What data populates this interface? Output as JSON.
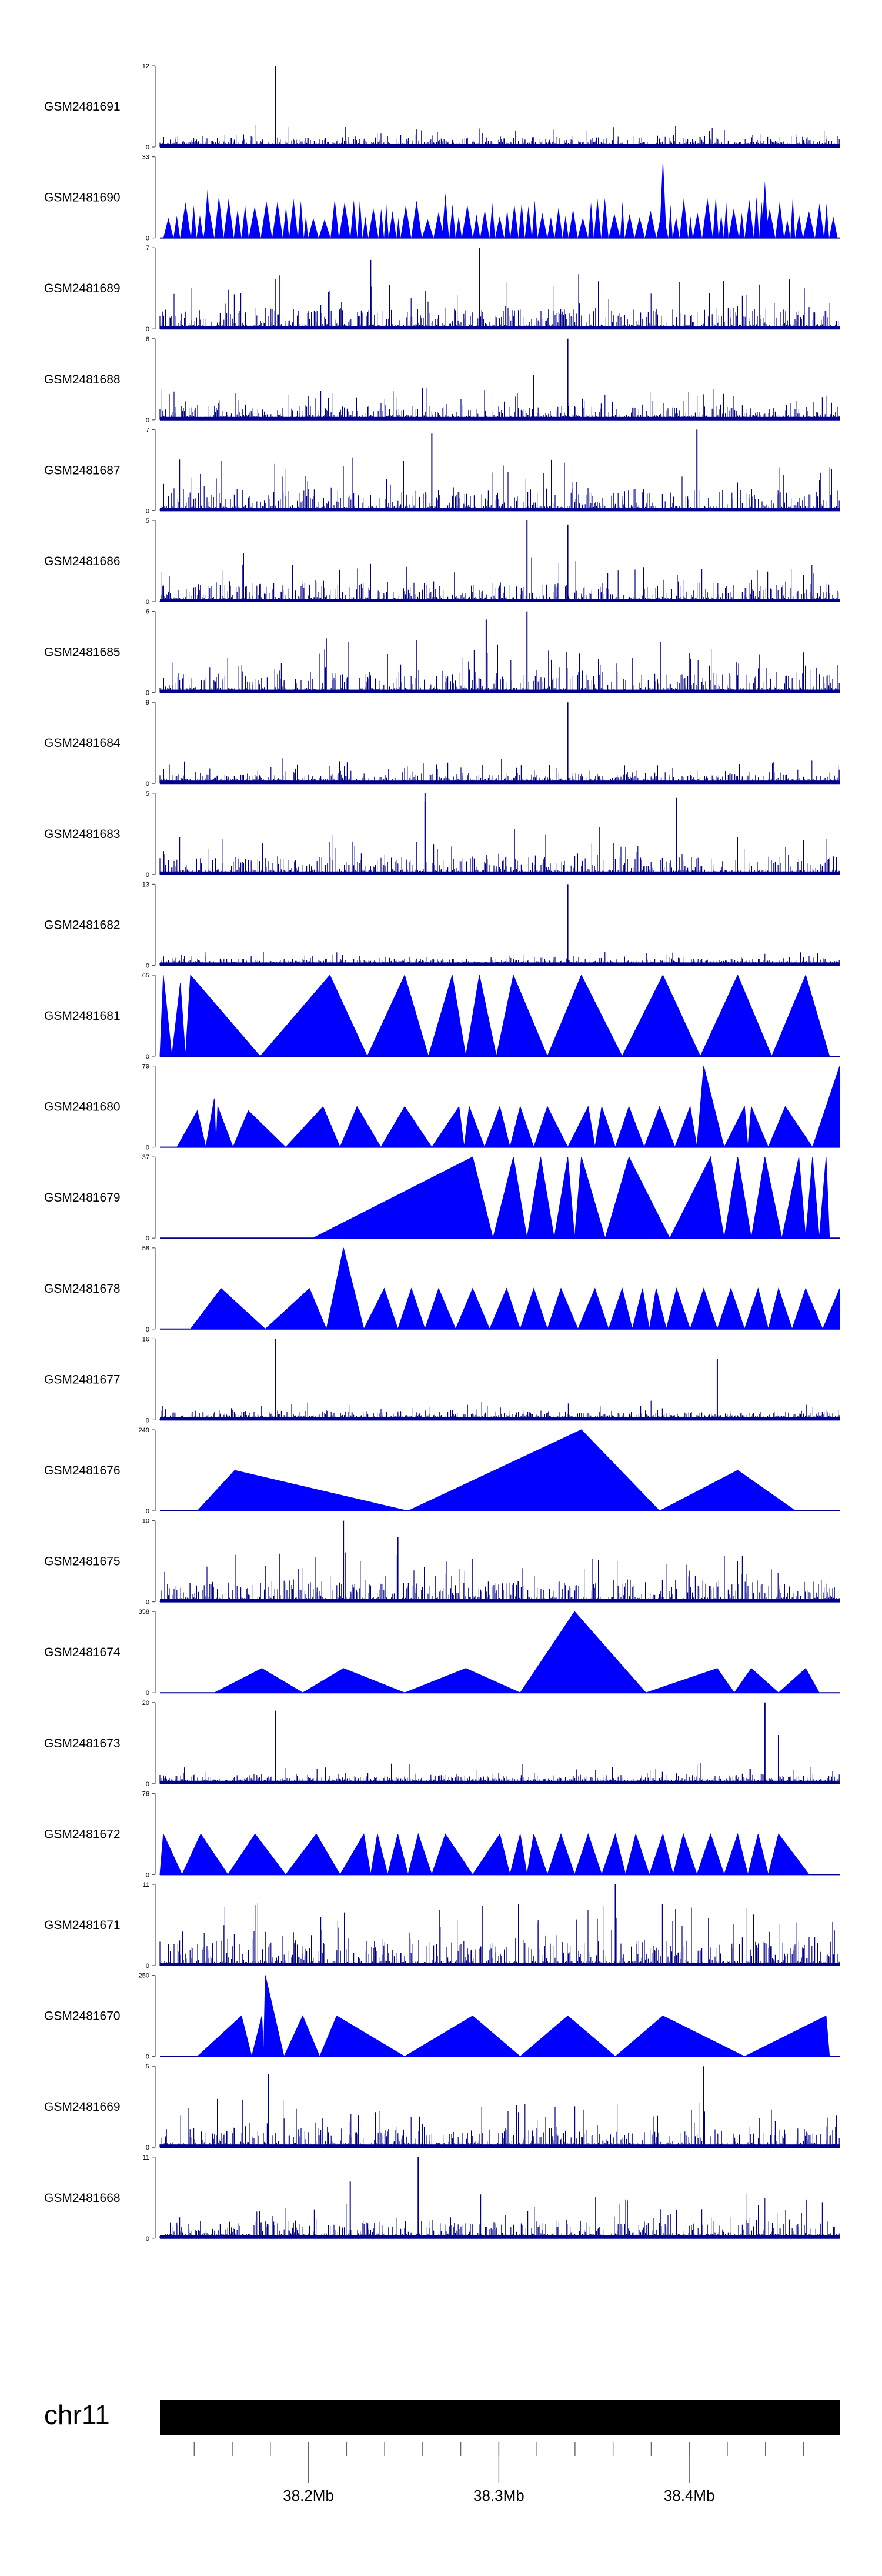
{
  "chart_data": {
    "type": "area",
    "title": "",
    "fill_color": "#0000ff",
    "bar_color": "#00008b",
    "ideogram_color": "#000000",
    "tracks": [
      {
        "name": "GSM2481691",
        "ymax": "12",
        "ymin": "0",
        "style": "bars",
        "spikes": [
          [
            0.17,
            1.0
          ]
        ],
        "noise": 0.18,
        "seed": 11
      },
      {
        "name": "GSM2481690",
        "ymax": "33",
        "ymin": "0",
        "style": "teeth",
        "spikes": [
          [
            0.07,
            0.6
          ],
          [
            0.42,
            0.55
          ],
          [
            0.74,
            1.0
          ],
          [
            0.89,
            0.7
          ]
        ],
        "noise": 0.3,
        "seed": 12
      },
      {
        "name": "GSM2481689",
        "ymax": "7",
        "ymin": "0",
        "style": "bars",
        "spikes": [
          [
            0.47,
            1.0
          ],
          [
            0.31,
            0.85
          ]
        ],
        "noise": 0.45,
        "seed": 13
      },
      {
        "name": "GSM2481688",
        "ymax": "6",
        "ymin": "0",
        "style": "bars",
        "spikes": [
          [
            0.6,
            1.0
          ],
          [
            0.55,
            0.55
          ]
        ],
        "noise": 0.28,
        "seed": 14
      },
      {
        "name": "GSM2481687",
        "ymax": "7",
        "ymin": "0",
        "style": "bars",
        "spikes": [
          [
            0.4,
            0.95
          ],
          [
            0.79,
            1.0
          ]
        ],
        "noise": 0.45,
        "seed": 15
      },
      {
        "name": "GSM2481686",
        "ymax": "5",
        "ymin": "0",
        "style": "bars",
        "spikes": [
          [
            0.54,
            1.0
          ],
          [
            0.6,
            0.95
          ]
        ],
        "noise": 0.4,
        "seed": 16
      },
      {
        "name": "GSM2481685",
        "ymax": "6",
        "ymin": "0",
        "style": "bars",
        "spikes": [
          [
            0.54,
            1.0
          ],
          [
            0.48,
            0.9
          ]
        ],
        "noise": 0.45,
        "seed": 17
      },
      {
        "name": "GSM2481684",
        "ymax": "9",
        "ymin": "0",
        "style": "bars",
        "spikes": [
          [
            0.6,
            1.0
          ]
        ],
        "noise": 0.18,
        "seed": 18
      },
      {
        "name": "GSM2481683",
        "ymax": "5",
        "ymin": "0",
        "style": "bars",
        "spikes": [
          [
            0.39,
            0.9
          ],
          [
            0.39,
            1.0
          ],
          [
            0.76,
            0.95
          ]
        ],
        "noise": 0.4,
        "seed": 19
      },
      {
        "name": "GSM2481682",
        "ymax": "13",
        "ymin": "0",
        "style": "bars",
        "spikes": [
          [
            0.6,
            1.0
          ]
        ],
        "noise": 0.1,
        "seed": 20
      },
      {
        "name": "GSM2481681",
        "ymax": "65",
        "ymin": "0",
        "style": "tri",
        "peaks": [
          [
            0.005,
            1.0
          ],
          [
            0.03,
            0.9
          ],
          [
            0.045,
            1.0
          ],
          [
            0.25,
            1.0
          ],
          [
            0.36,
            1.0
          ],
          [
            0.43,
            1.0
          ],
          [
            0.47,
            1.0
          ],
          [
            0.52,
            1.0
          ],
          [
            0.62,
            1.0
          ],
          [
            0.74,
            1.0
          ],
          [
            0.85,
            1.0
          ],
          [
            0.95,
            1.0
          ]
        ],
        "start": 0.0,
        "end": 0.985
      },
      {
        "name": "GSM2481680",
        "ymax": "79",
        "ymin": "0",
        "style": "tri",
        "peaks": [
          [
            0.055,
            0.45
          ],
          [
            0.08,
            0.6
          ],
          [
            0.085,
            0.5
          ],
          [
            0.13,
            0.45
          ],
          [
            0.24,
            0.5
          ],
          [
            0.29,
            0.5
          ],
          [
            0.36,
            0.5
          ],
          [
            0.44,
            0.5
          ],
          [
            0.455,
            0.5
          ],
          [
            0.5,
            0.5
          ],
          [
            0.53,
            0.5
          ],
          [
            0.57,
            0.5
          ],
          [
            0.63,
            0.5
          ],
          [
            0.65,
            0.5
          ],
          [
            0.69,
            0.5
          ],
          [
            0.735,
            0.5
          ],
          [
            0.78,
            0.5
          ],
          [
            0.8,
            1.0
          ],
          [
            0.86,
            0.5
          ],
          [
            0.87,
            0.5
          ],
          [
            0.92,
            0.5
          ],
          [
            1.0,
            1.0
          ]
        ],
        "start": 0.025,
        "end": 1.0
      },
      {
        "name": "GSM2481679",
        "ymax": "37",
        "ymin": "0",
        "style": "tri",
        "peaks": [
          [
            0.46,
            1.0
          ],
          [
            0.52,
            1.0
          ],
          [
            0.56,
            1.0
          ],
          [
            0.6,
            1.0
          ],
          [
            0.62,
            1.0
          ],
          [
            0.69,
            1.0
          ],
          [
            0.81,
            1.0
          ],
          [
            0.85,
            1.0
          ],
          [
            0.89,
            1.0
          ],
          [
            0.94,
            1.0
          ],
          [
            0.96,
            1.0
          ],
          [
            0.98,
            1.0
          ]
        ],
        "start": 0.225,
        "end": 0.985
      },
      {
        "name": "GSM2481678",
        "ymax": "58",
        "ymin": "0",
        "style": "tri",
        "peaks": [
          [
            0.09,
            0.5
          ],
          [
            0.22,
            0.5
          ],
          [
            0.27,
            1.0
          ],
          [
            0.33,
            0.5
          ],
          [
            0.37,
            0.5
          ],
          [
            0.41,
            0.5
          ],
          [
            0.46,
            0.5
          ],
          [
            0.51,
            0.5
          ],
          [
            0.55,
            0.5
          ],
          [
            0.59,
            0.5
          ],
          [
            0.64,
            0.5
          ],
          [
            0.68,
            0.5
          ],
          [
            0.71,
            0.5
          ],
          [
            0.73,
            0.5
          ],
          [
            0.76,
            0.5
          ],
          [
            0.8,
            0.5
          ],
          [
            0.84,
            0.5
          ],
          [
            0.88,
            0.5
          ],
          [
            0.91,
            0.5
          ],
          [
            0.95,
            0.5
          ],
          [
            1.0,
            0.5
          ]
        ],
        "start": 0.045,
        "end": 1.0
      },
      {
        "name": "GSM2481677",
        "ymax": "16",
        "ymin": "0",
        "style": "bars",
        "spikes": [
          [
            0.17,
            1.0
          ],
          [
            0.82,
            0.75
          ]
        ],
        "noise": 0.15,
        "seed": 21
      },
      {
        "name": "GSM2481676",
        "ymax": "249",
        "ymin": "0",
        "style": "tri",
        "peaks": [
          [
            0.11,
            0.5
          ],
          [
            0.62,
            1.0
          ],
          [
            0.85,
            0.5
          ]
        ],
        "start": 0.055,
        "end": 0.935
      },
      {
        "name": "GSM2481675",
        "ymax": "10",
        "ymin": "0",
        "style": "bars",
        "spikes": [
          [
            0.27,
            1.0
          ],
          [
            0.35,
            0.8
          ]
        ],
        "noise": 0.45,
        "seed": 22
      },
      {
        "name": "GSM2481674",
        "ymax": "358",
        "ymin": "0",
        "style": "tri",
        "peaks": [
          [
            0.15,
            0.3
          ],
          [
            0.27,
            0.3
          ],
          [
            0.45,
            0.3
          ],
          [
            0.61,
            1.0
          ],
          [
            0.82,
            0.3
          ],
          [
            0.87,
            0.3
          ],
          [
            0.95,
            0.3
          ]
        ],
        "start": 0.08,
        "end": 0.97
      },
      {
        "name": "GSM2481673",
        "ymax": "20",
        "ymin": "0",
        "style": "bars",
        "spikes": [
          [
            0.17,
            0.9
          ],
          [
            0.89,
            1.0
          ],
          [
            0.91,
            0.6
          ]
        ],
        "noise": 0.15,
        "seed": 23
      },
      {
        "name": "GSM2481672",
        "ymax": "76",
        "ymin": "0",
        "style": "tri",
        "peaks": [
          [
            0.005,
            0.5
          ],
          [
            0.06,
            0.5
          ],
          [
            0.14,
            0.5
          ],
          [
            0.23,
            0.5
          ],
          [
            0.3,
            0.5
          ],
          [
            0.32,
            0.5
          ],
          [
            0.35,
            0.5
          ],
          [
            0.38,
            0.5
          ],
          [
            0.42,
            0.5
          ],
          [
            0.5,
            0.5
          ],
          [
            0.53,
            0.5
          ],
          [
            0.55,
            0.5
          ],
          [
            0.59,
            0.5
          ],
          [
            0.63,
            0.5
          ],
          [
            0.67,
            0.5
          ],
          [
            0.7,
            0.5
          ],
          [
            0.74,
            0.5
          ],
          [
            0.77,
            0.5
          ],
          [
            0.81,
            0.5
          ],
          [
            0.85,
            0.5
          ],
          [
            0.88,
            0.5
          ],
          [
            0.91,
            0.5
          ]
        ],
        "start": 0.0,
        "end": 0.955
      },
      {
        "name": "GSM2481671",
        "ymax": "11",
        "ymin": "0",
        "style": "bars",
        "spikes": [
          [
            0.67,
            1.0
          ]
        ],
        "noise": 0.55,
        "seed": 24
      },
      {
        "name": "GSM2481670",
        "ymax": "250",
        "ymin": "0",
        "style": "tri",
        "peaks": [
          [
            0.12,
            0.5
          ],
          [
            0.15,
            0.5
          ],
          [
            0.155,
            1.0
          ],
          [
            0.21,
            0.5
          ],
          [
            0.26,
            0.5
          ],
          [
            0.46,
            0.5
          ],
          [
            0.6,
            0.5
          ],
          [
            0.74,
            0.5
          ],
          [
            0.98,
            0.5
          ]
        ],
        "start": 0.055,
        "end": 0.985
      },
      {
        "name": "GSM2481669",
        "ymax": "5",
        "ymin": "0",
        "style": "bars",
        "spikes": [
          [
            0.16,
            0.9
          ],
          [
            0.8,
            1.0
          ]
        ],
        "noise": 0.4,
        "seed": 25
      },
      {
        "name": "GSM2481668",
        "ymax": "11",
        "ymin": "0",
        "style": "bars",
        "spikes": [
          [
            0.38,
            1.0
          ],
          [
            0.28,
            0.7
          ]
        ],
        "noise": 0.35,
        "seed": 26
      }
    ],
    "chromosome": "chr11",
    "x_range_mb": [
      38.122,
      38.479
    ],
    "x_ticks": [
      {
        "value": 38.2,
        "label": "38.2Mb"
      },
      {
        "value": 38.3,
        "label": "38.3Mb"
      },
      {
        "value": 38.4,
        "label": "38.4Mb"
      }
    ],
    "minor_tick_step_mb": 0.02
  }
}
